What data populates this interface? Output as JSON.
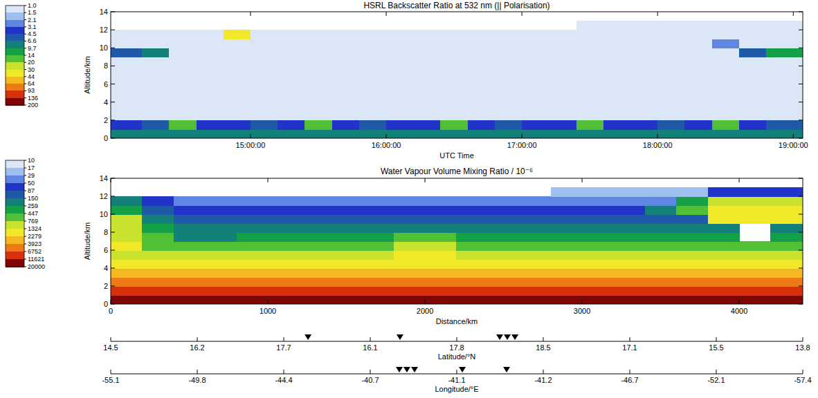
{
  "chart_data": [
    {
      "type": "heatmap",
      "title": "HSRL Backscatter Ratio at 532 nm (|| Polarisation)",
      "xlabel": "UTC Time",
      "ylabel": "Altitude/km",
      "xlim": [
        13.97,
        19.07
      ],
      "xticks": [
        {
          "value": 15,
          "label": "15:00:00"
        },
        {
          "value": 16,
          "label": "16:00:00"
        },
        {
          "value": 17,
          "label": "17:00:00"
        },
        {
          "value": 18,
          "label": "18:00:00"
        },
        {
          "value": 19,
          "label": "19:00:00"
        }
      ],
      "ylim": [
        0,
        14
      ],
      "yticks": [
        0,
        2,
        4,
        6,
        8,
        10,
        12,
        14
      ],
      "x_bins": [
        13.97,
        14.2,
        14.4,
        14.6,
        14.8,
        15,
        15.2,
        15.4,
        15.6,
        15.8,
        16,
        16.2,
        16.4,
        16.6,
        16.8,
        17,
        17.2,
        17.4,
        17.6,
        17.8,
        18,
        18.2,
        18.4,
        18.6,
        18.8,
        19.07
      ],
      "y_bins": [
        0,
        1,
        2,
        3,
        4,
        5,
        6,
        7,
        8,
        9,
        10,
        11,
        12,
        13,
        14
      ],
      "cells": [
        [
          8,
          7,
          8,
          8,
          7,
          8,
          8,
          7,
          8,
          8,
          7,
          8,
          8,
          7,
          8,
          8,
          7,
          8,
          8,
          7,
          8,
          8,
          7,
          8,
          8
        ],
        [
          4,
          5,
          14,
          4,
          4,
          5,
          4,
          14,
          4,
          5,
          4,
          4,
          14,
          4,
          5,
          4,
          4,
          14,
          4,
          4,
          5,
          4,
          14,
          4,
          5
        ],
        [
          1.3,
          1.4,
          1.3,
          1.3,
          1.4,
          1.3,
          1.3,
          1.4,
          1.3,
          1.3,
          1.4,
          1.3,
          1.3,
          1.4,
          1.3,
          1.3,
          1.4,
          1.3,
          1.3,
          1.4,
          1.3,
          1.3,
          1.4,
          1.3,
          1.3
        ],
        [
          1.1,
          1.1,
          1.1,
          1.1,
          1.1,
          1.1,
          1.1,
          1.1,
          1.1,
          1.1,
          1.1,
          1.1,
          1.1,
          1.1,
          1.1,
          1.1,
          1.1,
          1.1,
          1.1,
          1.1,
          1.1,
          1.1,
          1.1,
          1.1,
          1.1
        ],
        [
          1.1,
          1.1,
          1.1,
          1.1,
          1.1,
          1.1,
          1.1,
          1.1,
          1.1,
          1.1,
          1.1,
          1.1,
          1.1,
          1.1,
          1.1,
          1.1,
          1.1,
          1.1,
          1.1,
          1.1,
          1.1,
          1.1,
          1.1,
          1.1,
          1.1
        ],
        [
          1.1,
          1.1,
          1.1,
          1.1,
          1.1,
          1.1,
          1.1,
          1.1,
          1.1,
          1.1,
          1.1,
          1.1,
          1.1,
          1.1,
          1.1,
          1.1,
          1.1,
          1.1,
          1.1,
          1.1,
          1.1,
          1.1,
          1.1,
          1.1,
          1.1
        ],
        [
          1.1,
          1.1,
          1.1,
          1.1,
          1.1,
          1.1,
          1.1,
          1.1,
          1.1,
          1.1,
          1.1,
          1.1,
          1.1,
          1.1,
          1.1,
          1.1,
          1.1,
          1.1,
          1.1,
          1.1,
          1.1,
          1.1,
          1.1,
          1.1,
          1.1
        ],
        [
          1.1,
          1.1,
          1.1,
          1.1,
          1.1,
          1.1,
          1.1,
          1.1,
          1.1,
          1.1,
          1.1,
          1.1,
          1.1,
          1.1,
          1.1,
          1.1,
          1.1,
          1.1,
          1.1,
          1.1,
          1.1,
          1.1,
          1.1,
          1.1,
          1.1
        ],
        [
          1.1,
          1.1,
          1.1,
          1.1,
          1.1,
          1.1,
          1.1,
          1.1,
          1.1,
          1.1,
          1.1,
          1.1,
          1.1,
          1.1,
          1.1,
          1.1,
          1.1,
          1.1,
          1.1,
          1.1,
          1.1,
          1.1,
          1.1,
          1.1,
          1.1
        ],
        [
          6,
          9,
          1.1,
          1.1,
          1.1,
          1.1,
          1.1,
          1.1,
          1.1,
          1.1,
          1.1,
          1.1,
          1.1,
          1.1,
          1.1,
          1.1,
          1.1,
          1.1,
          1.1,
          1.1,
          1.1,
          1.1,
          1.1,
          6,
          12
        ],
        [
          1.1,
          1.1,
          1.1,
          1.1,
          1.1,
          1.1,
          1.1,
          1.1,
          1.1,
          1.1,
          1.1,
          1.1,
          1.1,
          1.1,
          1.1,
          1.1,
          1.1,
          1.1,
          1.1,
          1.1,
          1.1,
          1.1,
          3,
          1.1,
          1.1
        ],
        [
          1.1,
          1.1,
          1.1,
          1.1,
          30,
          1.1,
          1.1,
          1.1,
          1.1,
          1.1,
          1.1,
          1.1,
          1.1,
          1.1,
          1.1,
          1.1,
          1.1,
          1.1,
          1.1,
          1.1,
          1.1,
          1.1,
          1.1,
          1.1,
          1.1
        ],
        [
          null,
          null,
          null,
          null,
          null,
          null,
          null,
          null,
          null,
          null,
          null,
          null,
          null,
          null,
          null,
          null,
          null,
          1.1,
          1.1,
          1.1,
          1.1,
          1.1,
          1.1,
          1.1,
          1.1
        ],
        [
          null,
          null,
          null,
          null,
          null,
          null,
          null,
          null,
          null,
          null,
          null,
          null,
          null,
          null,
          null,
          null,
          null,
          null,
          null,
          null,
          null,
          null,
          null,
          null,
          null
        ]
      ],
      "colorbar": {
        "ticks": [
          {
            "value": 1,
            "label": "1.0"
          },
          1.5,
          2.1,
          3.1,
          4.5,
          6.6,
          9.7,
          14,
          20,
          30,
          44,
          64,
          93,
          136,
          200
        ],
        "colors": [
          "#dbe7f7",
          "#9fbfee",
          "#5f86e4",
          "#2234c8",
          "#1e5aa8",
          "#13807a",
          "#14a046",
          "#52c036",
          "#c8e22e",
          "#f2e82a",
          "#f6b820",
          "#ee7a16",
          "#d8300c",
          "#800606"
        ]
      }
    },
    {
      "type": "heatmap",
      "title": "Water Vapour Volume Mixing Ratio / 10⁻⁶",
      "xlabel": "Distance/km",
      "ylabel": "Altitude/km",
      "xlim": [
        0,
        4405
      ],
      "xticks": [
        0,
        1000,
        2000,
        3000,
        4000
      ],
      "ylim": [
        0,
        14
      ],
      "yticks": [
        0,
        2,
        4,
        6,
        8,
        10,
        12,
        14
      ],
      "x_bins": [
        0,
        200,
        400,
        600,
        800,
        1000,
        1200,
        1400,
        1600,
        1800,
        2000,
        2200,
        2400,
        2600,
        2800,
        3000,
        3200,
        3400,
        3600,
        3800,
        4000,
        4200,
        4405
      ],
      "y_bins": [
        0,
        1,
        2,
        3,
        4,
        5,
        6,
        7,
        8,
        9,
        10,
        11,
        12,
        13,
        14
      ],
      "cells": [
        [
          16000,
          14000,
          15000,
          13000,
          14000,
          16000,
          14000,
          13000,
          15000,
          14000,
          16000,
          14000,
          13000,
          15000,
          14000,
          16000,
          14000,
          13000,
          15000,
          14000,
          16000,
          14000
        ],
        [
          7000,
          8000,
          7000,
          7000,
          8000,
          7000,
          7000,
          8000,
          7000,
          7000,
          8000,
          7000,
          7000,
          8000,
          7000,
          7000,
          8000,
          7000,
          7000,
          8000,
          7000,
          7000
        ],
        [
          4500,
          4000,
          4000,
          4500,
          4000,
          4000,
          4500,
          4000,
          4000,
          4500,
          4000,
          4000,
          4500,
          4000,
          4000,
          4500,
          4000,
          4000,
          4500,
          4000,
          4000,
          4500
        ],
        [
          3000,
          2500,
          2500,
          2500,
          2500,
          2500,
          2500,
          2500,
          2500,
          2500,
          2500,
          2500,
          2500,
          2500,
          2500,
          2500,
          2500,
          2500,
          2500,
          2500,
          2500,
          2500
        ],
        [
          1500,
          1500,
          1500,
          1500,
          1500,
          1500,
          1500,
          1500,
          1500,
          2000,
          2000,
          1500,
          1500,
          1500,
          1500,
          1500,
          1500,
          1500,
          1500,
          1500,
          1500,
          1500
        ],
        [
          900,
          900,
          900,
          900,
          900,
          900,
          900,
          900,
          900,
          1400,
          1400,
          900,
          900,
          900,
          900,
          900,
          900,
          900,
          900,
          900,
          900,
          900
        ],
        [
          1500,
          700,
          500,
          500,
          500,
          500,
          500,
          500,
          500,
          900,
          900,
          500,
          500,
          500,
          500,
          500,
          500,
          500,
          500,
          500,
          500,
          500
        ],
        [
          1200,
          500,
          250,
          250,
          300,
          300,
          300,
          300,
          300,
          500,
          500,
          300,
          300,
          300,
          300,
          300,
          300,
          300,
          300,
          300,
          null,
          300
        ],
        [
          900,
          300,
          180,
          180,
          180,
          180,
          180,
          180,
          180,
          250,
          250,
          180,
          180,
          180,
          180,
          180,
          180,
          180,
          180,
          180,
          null,
          180
        ],
        [
          800,
          200,
          120,
          120,
          120,
          120,
          120,
          120,
          120,
          120,
          120,
          120,
          120,
          120,
          120,
          120,
          120,
          120,
          120,
          1500,
          1500,
          1500
        ],
        [
          400,
          100,
          70,
          70,
          70,
          70,
          70,
          70,
          70,
          70,
          70,
          70,
          70,
          70,
          70,
          70,
          70,
          150,
          500,
          2000,
          2000,
          2000
        ],
        [
          150,
          60,
          40,
          40,
          40,
          40,
          40,
          40,
          40,
          40,
          40,
          40,
          40,
          40,
          40,
          40,
          40,
          40,
          300,
          800,
          800,
          800
        ],
        [
          null,
          null,
          null,
          null,
          null,
          null,
          null,
          null,
          null,
          null,
          null,
          null,
          null,
          null,
          25,
          25,
          25,
          25,
          25,
          60,
          60,
          60
        ],
        [
          null,
          null,
          null,
          null,
          null,
          null,
          null,
          null,
          null,
          null,
          null,
          null,
          null,
          null,
          null,
          null,
          null,
          null,
          null,
          null,
          null,
          null
        ]
      ],
      "colorbar": {
        "ticks": [
          10,
          17,
          29,
          50,
          87,
          150,
          259,
          447,
          769,
          1324,
          2279,
          3923,
          6752,
          11621,
          20000
        ],
        "colors": [
          "#dbe7f7",
          "#9fbfee",
          "#5f86e4",
          "#2234c8",
          "#1e5aa8",
          "#13807a",
          "#14a046",
          "#52c036",
          "#c8e22e",
          "#f2e82a",
          "#f6b820",
          "#ee7a16",
          "#d8300c",
          "#800606"
        ]
      },
      "latitude_axis": {
        "label": "Latitude/°N",
        "ticks": [
          14.5,
          16.2,
          17.7,
          16.1,
          17.8,
          18.5,
          17.1,
          15.5,
          13.8
        ],
        "markers": [
          1256,
          1841,
          2476,
          2524,
          2573
        ]
      },
      "longitude_axis": {
        "label": "Longitude/°E",
        "ticks": [
          -55.1,
          -49.8,
          -44.4,
          -40.7,
          -41.1,
          -41.2,
          -46.7,
          -52.1,
          -57.4
        ],
        "markers": [
          1837,
          1885,
          1934,
          2238,
          2520
        ]
      }
    }
  ]
}
